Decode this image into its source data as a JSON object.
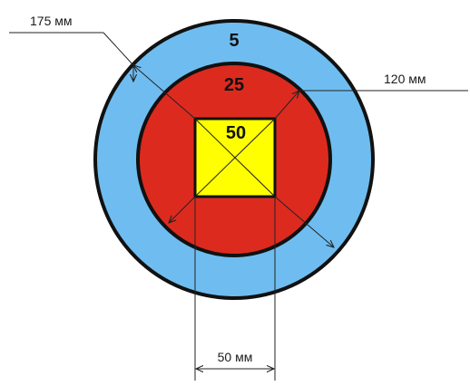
{
  "colors": {
    "outer_ring": "#6fbdf0",
    "middle_ring": "#dd2a1f",
    "center_square": "#ffff00",
    "outline": "#111111",
    "dimension_lines": "#222222"
  },
  "scores": {
    "outer": "5",
    "middle": "25",
    "center": "50"
  },
  "dimensions": {
    "outer_diameter": "175 мм",
    "middle_diameter": "120 мм",
    "square_width": "50 мм"
  }
}
